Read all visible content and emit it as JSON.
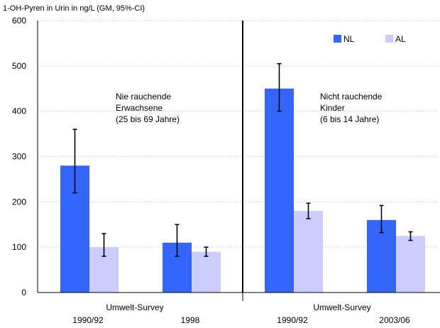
{
  "chart_data": {
    "type": "bar",
    "ylabel": "1-OH-Pyren in Urin in ng/L (GM, 95%-CI)",
    "ylim": [
      0,
      600
    ],
    "yticks": [
      0,
      100,
      200,
      300,
      400,
      500,
      600
    ],
    "grid": true,
    "legend_position": "top-right",
    "legend": [
      {
        "name": "NL",
        "color": "#3366ff"
      },
      {
        "name": "AL",
        "color": "#ccccff"
      }
    ],
    "panels": [
      {
        "survey_label": "Umwelt-Survey",
        "annotation": [
          "Nie rauchende",
          "Erwachsene",
          "(25 bis 69 Jahre)"
        ],
        "groups": [
          {
            "label": "1990/92",
            "bars": [
              {
                "series": "NL",
                "value": 280,
                "ci": [
                  220,
                  360
                ]
              },
              {
                "series": "AL",
                "value": 100,
                "ci": [
                  80,
                  130
                ]
              }
            ]
          },
          {
            "label": "1998",
            "bars": [
              {
                "series": "NL",
                "value": 110,
                "ci": [
                  80,
                  150
                ]
              },
              {
                "series": "AL",
                "value": 90,
                "ci": [
                  80,
                  100
                ]
              }
            ]
          }
        ]
      },
      {
        "survey_label": "Umwelt-Survey",
        "annotation": [
          "Nicht rauchende",
          "Kinder",
          "(6 bis 14 Jahre)"
        ],
        "groups": [
          {
            "label": "1990/92",
            "bars": [
              {
                "series": "NL",
                "value": 450,
                "ci": [
                  400,
                  505
                ]
              },
              {
                "series": "AL",
                "value": 180,
                "ci": [
                  163,
                  197
                ]
              }
            ]
          },
          {
            "label": "2003/06",
            "bars": [
              {
                "series": "NL",
                "value": 160,
                "ci": [
                  132,
                  192
                ]
              },
              {
                "series": "AL",
                "value": 125,
                "ci": [
                  115,
                  134
                ]
              }
            ]
          }
        ]
      }
    ]
  }
}
